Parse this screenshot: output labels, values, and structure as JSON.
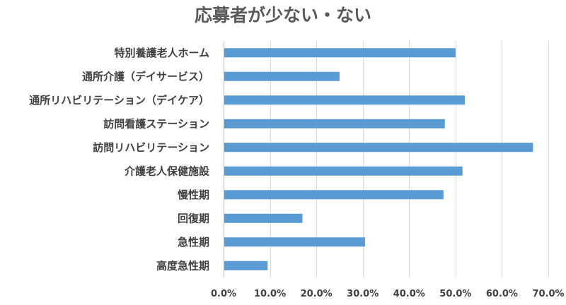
{
  "chart_data": {
    "type": "bar",
    "orientation": "horizontal",
    "title": "応募者が少ない・ない",
    "categories": [
      "特別養護老人ホーム",
      "通所介護（デイサービス）",
      "通所リハビリテーション（デイケア）",
      "訪問看護ステーション",
      "訪問リハビリテーション",
      "介護老人保健施設",
      "慢性期",
      "回復期",
      "急性期",
      "高度急性期"
    ],
    "values": [
      0.5,
      0.25,
      0.52,
      0.477,
      0.667,
      0.515,
      0.474,
      0.17,
      0.305,
      0.095
    ],
    "xlim": [
      0,
      0.7
    ],
    "xticks": [
      0,
      0.1,
      0.2,
      0.3,
      0.4,
      0.5,
      0.6,
      0.7
    ],
    "xtick_labels": [
      "0.0%",
      "10.0%",
      "20.0%",
      "30.0%",
      "40.0%",
      "50.0%",
      "60.0%",
      "70.0%"
    ],
    "xlabel": "",
    "ylabel": "",
    "grid": true,
    "bar_color": "#5b9bd5"
  }
}
